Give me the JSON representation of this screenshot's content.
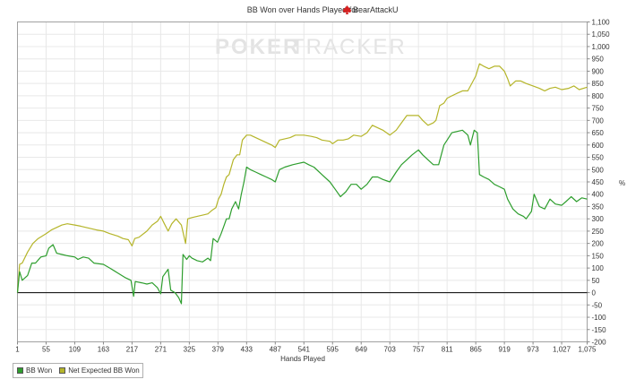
{
  "chart_data": {
    "type": "line",
    "title": "BB Won over Hands Played for",
    "player_name": "BearAttackU",
    "xlabel": "Hands Played",
    "ylabel": "%",
    "watermark_left": "POKER",
    "watermark_right": "TRACKER",
    "xlim": [
      1,
      1075
    ],
    "ylim": [
      -200,
      1100
    ],
    "x_ticks": [
      1,
      55,
      109,
      163,
      217,
      271,
      325,
      379,
      433,
      487,
      541,
      595,
      649,
      703,
      757,
      811,
      865,
      919,
      973,
      1027,
      1075
    ],
    "x_tick_labels": [
      "1",
      "55",
      "109",
      "163",
      "217",
      "271",
      "325",
      "379",
      "433",
      "487",
      "541",
      "595",
      "649",
      "703",
      "757",
      "811",
      "865",
      "919",
      "973",
      "1,027",
      "1,075"
    ],
    "y_ticks": [
      -200,
      -150,
      -100,
      -50,
      0,
      50,
      100,
      150,
      200,
      250,
      300,
      350,
      400,
      450,
      500,
      550,
      600,
      650,
      700,
      750,
      800,
      850,
      900,
      950,
      1000,
      1050,
      1100
    ],
    "y_tick_labels": [
      "-200",
      "-150",
      "-100",
      "-50",
      "0",
      "50",
      "100",
      "150",
      "200",
      "250",
      "300",
      "350",
      "400",
      "450",
      "500",
      "550",
      "600",
      "650",
      "700",
      "750",
      "800",
      "850",
      "900",
      "950",
      "1,000",
      "1,050",
      "1,100"
    ],
    "grid": true,
    "legend_position": "bottom-left",
    "series": [
      {
        "name": "BB Won",
        "color": "#2e9e2e",
        "points": [
          [
            1,
            0
          ],
          [
            5,
            85
          ],
          [
            10,
            50
          ],
          [
            20,
            70
          ],
          [
            28,
            120
          ],
          [
            35,
            120
          ],
          [
            45,
            145
          ],
          [
            55,
            150
          ],
          [
            60,
            180
          ],
          [
            68,
            195
          ],
          [
            75,
            160
          ],
          [
            85,
            155
          ],
          [
            95,
            150
          ],
          [
            109,
            145
          ],
          [
            115,
            135
          ],
          [
            125,
            145
          ],
          [
            135,
            140
          ],
          [
            145,
            120
          ],
          [
            163,
            115
          ],
          [
            175,
            100
          ],
          [
            190,
            80
          ],
          [
            205,
            60
          ],
          [
            215,
            50
          ],
          [
            220,
            -15
          ],
          [
            223,
            45
          ],
          [
            235,
            40
          ],
          [
            245,
            35
          ],
          [
            255,
            40
          ],
          [
            265,
            20
          ],
          [
            271,
            -5
          ],
          [
            275,
            65
          ],
          [
            285,
            95
          ],
          [
            290,
            10
          ],
          [
            298,
            0
          ],
          [
            305,
            -20
          ],
          [
            310,
            -45
          ],
          [
            313,
            155
          ],
          [
            320,
            135
          ],
          [
            325,
            150
          ],
          [
            330,
            140
          ],
          [
            340,
            130
          ],
          [
            350,
            125
          ],
          [
            360,
            140
          ],
          [
            365,
            130
          ],
          [
            370,
            220
          ],
          [
            378,
            205
          ],
          [
            385,
            240
          ],
          [
            390,
            270
          ],
          [
            395,
            300
          ],
          [
            400,
            300
          ],
          [
            405,
            340
          ],
          [
            412,
            370
          ],
          [
            418,
            340
          ],
          [
            423,
            400
          ],
          [
            428,
            450
          ],
          [
            433,
            510
          ],
          [
            440,
            500
          ],
          [
            450,
            490
          ],
          [
            460,
            480
          ],
          [
            470,
            470
          ],
          [
            480,
            460
          ],
          [
            487,
            450
          ],
          [
            495,
            500
          ],
          [
            505,
            510
          ],
          [
            520,
            520
          ],
          [
            530,
            525
          ],
          [
            541,
            530
          ],
          [
            550,
            520
          ],
          [
            560,
            510
          ],
          [
            575,
            480
          ],
          [
            590,
            450
          ],
          [
            600,
            420
          ],
          [
            610,
            390
          ],
          [
            620,
            410
          ],
          [
            630,
            440
          ],
          [
            640,
            440
          ],
          [
            649,
            420
          ],
          [
            660,
            440
          ],
          [
            670,
            470
          ],
          [
            680,
            470
          ],
          [
            690,
            460
          ],
          [
            703,
            450
          ],
          [
            715,
            490
          ],
          [
            725,
            520
          ],
          [
            735,
            540
          ],
          [
            745,
            560
          ],
          [
            757,
            580
          ],
          [
            765,
            560
          ],
          [
            775,
            540
          ],
          [
            785,
            520
          ],
          [
            795,
            520
          ],
          [
            805,
            600
          ],
          [
            811,
            620
          ],
          [
            820,
            650
          ],
          [
            830,
            655
          ],
          [
            840,
            660
          ],
          [
            850,
            640
          ],
          [
            855,
            600
          ],
          [
            862,
            660
          ],
          [
            868,
            650
          ],
          [
            872,
            480
          ],
          [
            880,
            470
          ],
          [
            890,
            460
          ],
          [
            900,
            440
          ],
          [
            910,
            430
          ],
          [
            919,
            420
          ],
          [
            925,
            380
          ],
          [
            935,
            340
          ],
          [
            945,
            320
          ],
          [
            955,
            310
          ],
          [
            960,
            300
          ],
          [
            970,
            330
          ],
          [
            975,
            400
          ],
          [
            985,
            350
          ],
          [
            995,
            340
          ],
          [
            1005,
            380
          ],
          [
            1015,
            360
          ],
          [
            1027,
            355
          ],
          [
            1035,
            370
          ],
          [
            1045,
            390
          ],
          [
            1055,
            370
          ],
          [
            1065,
            385
          ],
          [
            1075,
            380
          ]
        ]
      },
      {
        "name": "Net Expected BB Won",
        "color": "#b5b52a",
        "points": [
          [
            1,
            0
          ],
          [
            5,
            115
          ],
          [
            10,
            120
          ],
          [
            20,
            165
          ],
          [
            30,
            200
          ],
          [
            40,
            220
          ],
          [
            55,
            240
          ],
          [
            65,
            255
          ],
          [
            75,
            265
          ],
          [
            85,
            275
          ],
          [
            95,
            280
          ],
          [
            109,
            275
          ],
          [
            120,
            270
          ],
          [
            130,
            265
          ],
          [
            140,
            260
          ],
          [
            150,
            255
          ],
          [
            163,
            250
          ],
          [
            175,
            240
          ],
          [
            190,
            230
          ],
          [
            200,
            220
          ],
          [
            210,
            215
          ],
          [
            217,
            190
          ],
          [
            222,
            220
          ],
          [
            230,
            225
          ],
          [
            245,
            250
          ],
          [
            255,
            275
          ],
          [
            265,
            290
          ],
          [
            271,
            310
          ],
          [
            278,
            280
          ],
          [
            285,
            250
          ],
          [
            292,
            280
          ],
          [
            300,
            300
          ],
          [
            310,
            275
          ],
          [
            318,
            200
          ],
          [
            322,
            300
          ],
          [
            330,
            305
          ],
          [
            340,
            310
          ],
          [
            350,
            315
          ],
          [
            360,
            320
          ],
          [
            368,
            335
          ],
          [
            375,
            345
          ],
          [
            380,
            380
          ],
          [
            385,
            400
          ],
          [
            390,
            440
          ],
          [
            395,
            470
          ],
          [
            400,
            480
          ],
          [
            408,
            540
          ],
          [
            415,
            560
          ],
          [
            420,
            560
          ],
          [
            425,
            620
          ],
          [
            433,
            640
          ],
          [
            440,
            640
          ],
          [
            450,
            630
          ],
          [
            460,
            620
          ],
          [
            470,
            610
          ],
          [
            480,
            600
          ],
          [
            487,
            590
          ],
          [
            495,
            620
          ],
          [
            505,
            625
          ],
          [
            515,
            630
          ],
          [
            525,
            640
          ],
          [
            541,
            640
          ],
          [
            555,
            635
          ],
          [
            565,
            630
          ],
          [
            575,
            620
          ],
          [
            590,
            615
          ],
          [
            595,
            605
          ],
          [
            605,
            620
          ],
          [
            615,
            620
          ],
          [
            625,
            625
          ],
          [
            635,
            640
          ],
          [
            649,
            635
          ],
          [
            660,
            650
          ],
          [
            670,
            680
          ],
          [
            680,
            670
          ],
          [
            690,
            660
          ],
          [
            703,
            640
          ],
          [
            715,
            660
          ],
          [
            725,
            690
          ],
          [
            735,
            720
          ],
          [
            745,
            720
          ],
          [
            757,
            720
          ],
          [
            765,
            700
          ],
          [
            775,
            680
          ],
          [
            785,
            690
          ],
          [
            790,
            700
          ],
          [
            797,
            760
          ],
          [
            805,
            770
          ],
          [
            811,
            790
          ],
          [
            820,
            800
          ],
          [
            830,
            810
          ],
          [
            840,
            820
          ],
          [
            850,
            820
          ],
          [
            860,
            860
          ],
          [
            865,
            880
          ],
          [
            872,
            930
          ],
          [
            880,
            920
          ],
          [
            890,
            910
          ],
          [
            900,
            920
          ],
          [
            910,
            920
          ],
          [
            919,
            900
          ],
          [
            925,
            870
          ],
          [
            930,
            840
          ],
          [
            940,
            860
          ],
          [
            950,
            860
          ],
          [
            960,
            850
          ],
          [
            973,
            840
          ],
          [
            985,
            830
          ],
          [
            995,
            820
          ],
          [
            1005,
            830
          ],
          [
            1015,
            835
          ],
          [
            1027,
            825
          ],
          [
            1040,
            830
          ],
          [
            1050,
            840
          ],
          [
            1060,
            825
          ],
          [
            1075,
            835
          ]
        ]
      }
    ]
  }
}
